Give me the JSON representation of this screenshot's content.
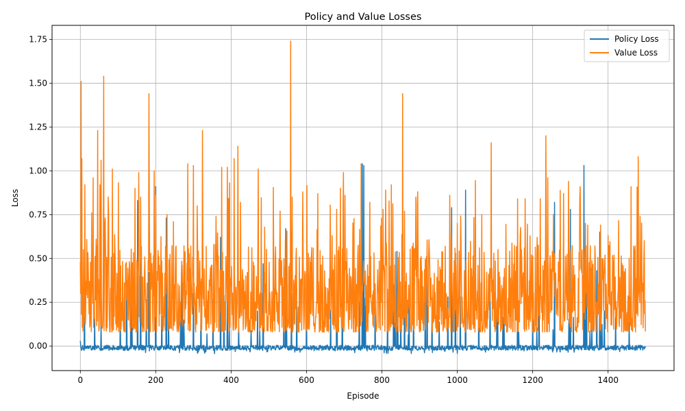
{
  "chart_data": {
    "type": "line",
    "title": "Policy and Value Losses",
    "xlabel": "Episode",
    "ylabel": "Loss",
    "xlim": [
      -75,
      1575
    ],
    "ylim": [
      -0.14,
      1.83
    ],
    "xticks": [
      0,
      200,
      400,
      600,
      800,
      1000,
      1200,
      1400
    ],
    "yticks": [
      0.0,
      0.25,
      0.5,
      0.75,
      1.0,
      1.25,
      1.5,
      1.75
    ],
    "xtick_labels": [
      "0",
      "200",
      "400",
      "600",
      "800",
      "1000",
      "1200",
      "1400"
    ],
    "ytick_labels": [
      "0.00",
      "0.25",
      "0.50",
      "0.75",
      "1.00",
      "1.25",
      "1.50",
      "1.75"
    ],
    "grid": true,
    "legend_position": "top-right",
    "n_points": 1500,
    "series": [
      {
        "name": "Policy Loss",
        "color": "#1f77b4",
        "baseline": -0.01,
        "spikes": [
          [
            0,
            0.03
          ],
          [
            152,
            0.83
          ],
          [
            160,
            0.5
          ],
          [
            182,
            0.42
          ],
          [
            200,
            0.91
          ],
          [
            228,
            0.73
          ],
          [
            270,
            0.46
          ],
          [
            300,
            0.3
          ],
          [
            320,
            0.25
          ],
          [
            372,
            0.62
          ],
          [
            390,
            0.28
          ],
          [
            470,
            0.2
          ],
          [
            485,
            0.47
          ],
          [
            540,
            0.45
          ],
          [
            545,
            0.67
          ],
          [
            560,
            0.3
          ],
          [
            600,
            0.2
          ],
          [
            680,
            0.36
          ],
          [
            695,
            0.32
          ],
          [
            748,
            1.04
          ],
          [
            752,
            1.03
          ],
          [
            840,
            0.54
          ],
          [
            860,
            0.3
          ],
          [
            920,
            0.46
          ],
          [
            975,
            0.28
          ],
          [
            985,
            0.79
          ],
          [
            995,
            0.53
          ],
          [
            1022,
            0.89
          ],
          [
            1200,
            0.15
          ],
          [
            1258,
            0.82
          ],
          [
            1300,
            0.78
          ],
          [
            1336,
            1.03
          ],
          [
            1340,
            0.5
          ],
          [
            1370,
            0.43
          ],
          [
            1378,
            0.65
          ],
          [
            1390,
            0.2
          ]
        ]
      },
      {
        "name": "Value Loss",
        "color": "#ff7f0e",
        "baseline": 0.3,
        "spikes": [
          [
            0,
            0.48
          ],
          [
            2,
            1.51
          ],
          [
            4,
            1.07
          ],
          [
            8,
            0.55
          ],
          [
            12,
            0.92
          ],
          [
            30,
            0.76
          ],
          [
            34,
            0.96
          ],
          [
            46,
            1.23
          ],
          [
            52,
            0.92
          ],
          [
            55,
            1.06
          ],
          [
            62,
            1.54
          ],
          [
            66,
            0.73
          ],
          [
            75,
            0.76
          ],
          [
            85,
            1.01
          ],
          [
            120,
            0.47
          ],
          [
            145,
            0.9
          ],
          [
            155,
            0.99
          ],
          [
            160,
            0.85
          ],
          [
            182,
            1.44
          ],
          [
            196,
            1.0
          ],
          [
            200,
            0.86
          ],
          [
            230,
            0.75
          ],
          [
            285,
            1.04
          ],
          [
            300,
            1.03
          ],
          [
            310,
            0.8
          ],
          [
            324,
            1.23
          ],
          [
            360,
            0.74
          ],
          [
            375,
            1.02
          ],
          [
            390,
            1.02
          ],
          [
            408,
            1.07
          ],
          [
            418,
            1.14
          ],
          [
            425,
            0.82
          ],
          [
            472,
            1.01
          ],
          [
            530,
            0.77
          ],
          [
            558,
            1.74
          ],
          [
            562,
            0.85
          ],
          [
            590,
            0.88
          ],
          [
            630,
            0.87
          ],
          [
            680,
            0.78
          ],
          [
            698,
            0.99
          ],
          [
            702,
            0.86
          ],
          [
            745,
            1.04
          ],
          [
            768,
            0.82
          ],
          [
            810,
            0.89
          ],
          [
            825,
            0.92
          ],
          [
            855,
            1.44
          ],
          [
            860,
            0.77
          ],
          [
            890,
            0.85
          ],
          [
            895,
            0.88
          ],
          [
            980,
            0.86
          ],
          [
            1000,
            0.7
          ],
          [
            1065,
            0.75
          ],
          [
            1090,
            1.16
          ],
          [
            1160,
            0.84
          ],
          [
            1180,
            0.84
          ],
          [
            1220,
            0.84
          ],
          [
            1235,
            1.2
          ],
          [
            1240,
            0.96
          ],
          [
            1255,
            0.75
          ],
          [
            1295,
            0.94
          ],
          [
            1325,
            0.85
          ],
          [
            1340,
            0.7
          ],
          [
            1380,
            0.69
          ],
          [
            1400,
            0.63
          ],
          [
            1480,
            1.08
          ],
          [
            1490,
            0.37
          ],
          [
            1498,
            0.26
          ]
        ]
      }
    ]
  }
}
